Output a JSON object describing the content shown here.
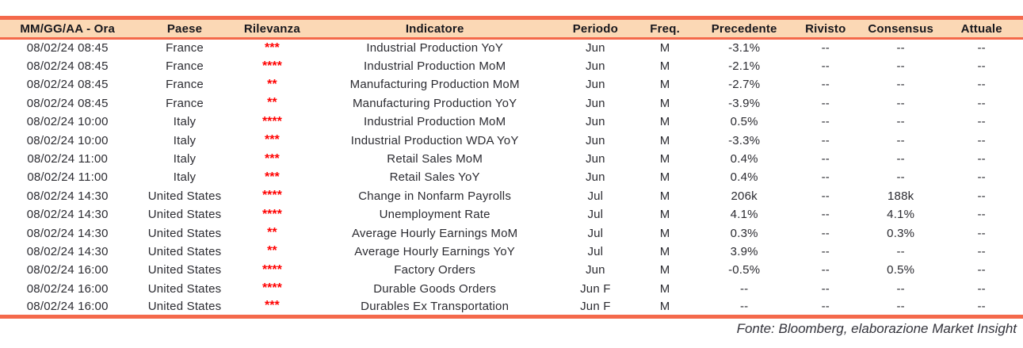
{
  "table": {
    "columns": [
      "MM/GG/AA - Ora",
      "Paese",
      "Rilevanza",
      "Indicatore",
      "Periodo",
      "Freq.",
      "Precedente",
      "Rivisto",
      "Consensus",
      "Attuale"
    ],
    "column_keys": [
      "datetime",
      "country",
      "relevance",
      "indicator",
      "period",
      "freq",
      "previous",
      "revised",
      "consensus",
      "actual"
    ],
    "rows": [
      [
        "08/02/24 08:45",
        "France",
        "***",
        "Industrial Production YoY",
        "Jun",
        "M",
        "-3.1%",
        "--",
        "--",
        "--"
      ],
      [
        "08/02/24 08:45",
        "France",
        "****",
        "Industrial Production MoM",
        "Jun",
        "M",
        "-2.1%",
        "--",
        "--",
        "--"
      ],
      [
        "08/02/24 08:45",
        "France",
        "**",
        "Manufacturing Production MoM",
        "Jun",
        "M",
        "-2.7%",
        "--",
        "--",
        "--"
      ],
      [
        "08/02/24 08:45",
        "France",
        "**",
        "Manufacturing Production YoY",
        "Jun",
        "M",
        "-3.9%",
        "--",
        "--",
        "--"
      ],
      [
        "08/02/24 10:00",
        "Italy",
        "****",
        "Industrial Production MoM",
        "Jun",
        "M",
        "0.5%",
        "--",
        "--",
        "--"
      ],
      [
        "08/02/24 10:00",
        "Italy",
        "***",
        "Industrial Production WDA YoY",
        "Jun",
        "M",
        "-3.3%",
        "--",
        "--",
        "--"
      ],
      [
        "08/02/24 11:00",
        "Italy",
        "***",
        "Retail Sales MoM",
        "Jun",
        "M",
        "0.4%",
        "--",
        "--",
        "--"
      ],
      [
        "08/02/24 11:00",
        "Italy",
        "***",
        "Retail Sales YoY",
        "Jun",
        "M",
        "0.4%",
        "--",
        "--",
        "--"
      ],
      [
        "08/02/24 14:30",
        "United States",
        "****",
        "Change in Nonfarm Payrolls",
        "Jul",
        "M",
        "206k",
        "--",
        "188k",
        "--"
      ],
      [
        "08/02/24 14:30",
        "United States",
        "****",
        "Unemployment Rate",
        "Jul",
        "M",
        "4.1%",
        "--",
        "4.1%",
        "--"
      ],
      [
        "08/02/24 14:30",
        "United States",
        "**",
        "Average Hourly Earnings MoM",
        "Jul",
        "M",
        "0.3%",
        "--",
        "0.3%",
        "--"
      ],
      [
        "08/02/24 14:30",
        "United States",
        "**",
        "Average Hourly Earnings YoY",
        "Jul",
        "M",
        "3.9%",
        "--",
        "--",
        "--"
      ],
      [
        "08/02/24 16:00",
        "United States",
        "****",
        "Factory Orders",
        "Jun",
        "M",
        "-0.5%",
        "--",
        "0.5%",
        "--"
      ],
      [
        "08/02/24 16:00",
        "United States",
        "****",
        "Durable Goods Orders",
        "Jun F",
        "M",
        "--",
        "--",
        "--",
        "--"
      ],
      [
        "08/02/24 16:00",
        "United States",
        "***",
        "Durables Ex Transportation",
        "Jun F",
        "M",
        "--",
        "--",
        "--",
        "--"
      ]
    ]
  },
  "footer": {
    "source_note": "Fonte: Bloomberg, elaborazione Market Insight"
  },
  "colors": {
    "accent": "#f4694b",
    "header_bg": "#fbd8b5",
    "star_red": "#ff0000",
    "body_text": "#2b2b31",
    "footer_text": "#33333b"
  }
}
